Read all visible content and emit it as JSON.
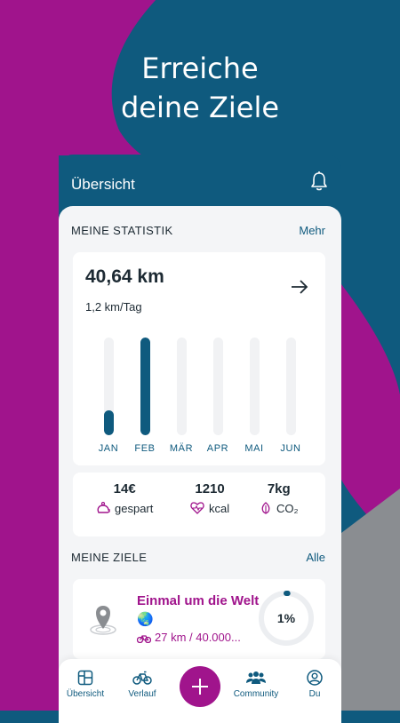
{
  "colors": {
    "accent": "#0f5a7e",
    "brand": "#a0148c"
  },
  "headline": {
    "line1": "Erreiche",
    "line2": "deine Ziele"
  },
  "app": {
    "title": "Übersicht",
    "notifications_icon": "bell-icon"
  },
  "statistik": {
    "section_label": "MEINE STATISTIK",
    "more_label": "Mehr",
    "distance": "40,64 km",
    "per_day": "1,2 km/Tag",
    "arrow_icon": "arrow-right-icon"
  },
  "chart_data": {
    "type": "bar",
    "categories": [
      "JAN",
      "FEB",
      "MÄR",
      "APR",
      "MAI",
      "JUN"
    ],
    "values": [
      0.25,
      1.0,
      0,
      0,
      0,
      0
    ]
  },
  "summary": [
    {
      "value": "14€",
      "label": "gespart",
      "icon": "piggy-bank-icon"
    },
    {
      "value": "1210",
      "label": "kcal",
      "icon": "heart-rate-icon"
    },
    {
      "value": "7kg",
      "label": "CO₂",
      "icon": "leaf-icon"
    }
  ],
  "ziele": {
    "section_label": "MEINE ZIELE",
    "all_label": "Alle",
    "goal": {
      "title": "Einmal um die Welt🌏",
      "progress_text": "27 km / 40.000...",
      "percent_label": "1%",
      "progress": 0.01,
      "icon": "location-pin-icon"
    }
  },
  "nav": [
    {
      "label": "Übersicht",
      "icon": "dashboard-icon"
    },
    {
      "label": "Verlauf",
      "icon": "bicycle-icon"
    },
    {
      "label": "Community",
      "icon": "people-icon"
    },
    {
      "label": "Du",
      "icon": "profile-icon"
    }
  ],
  "fab_icon": "plus-icon"
}
